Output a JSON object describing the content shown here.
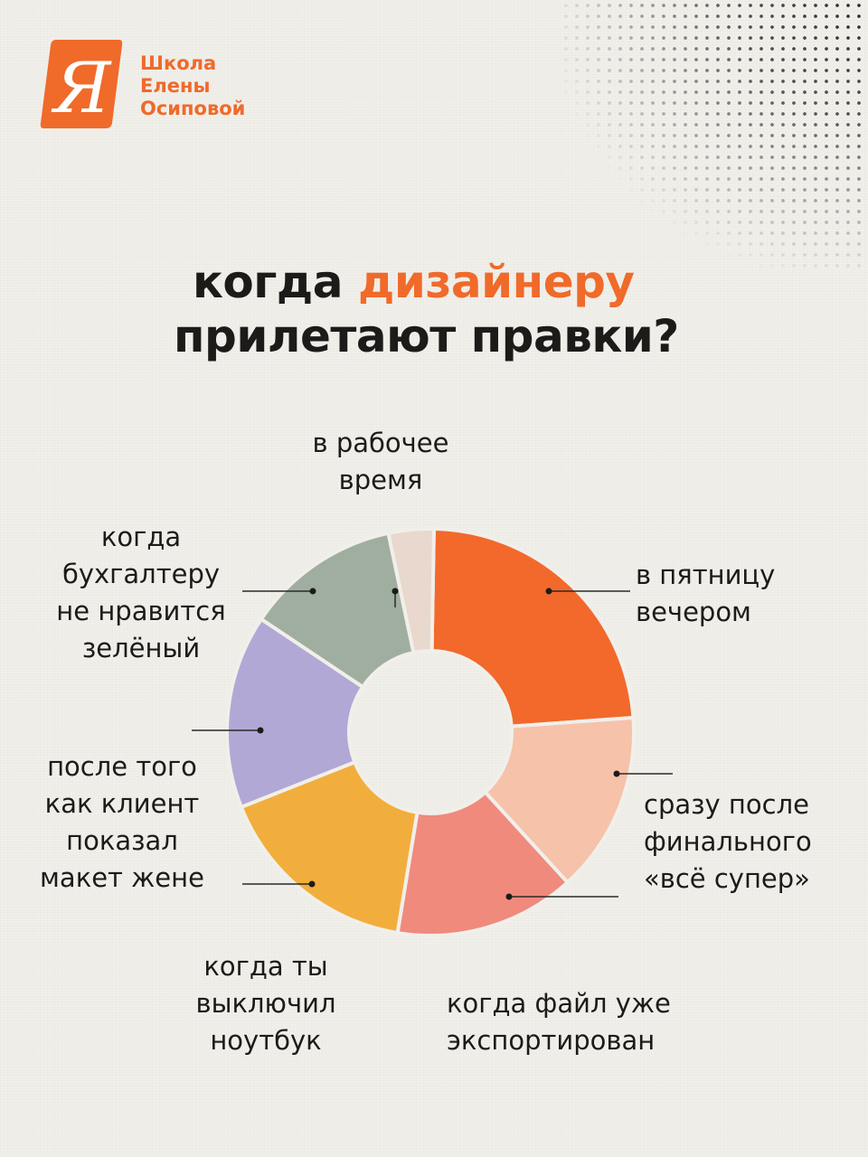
{
  "brand": {
    "logo_letter": "Я",
    "name_lines": [
      "Школа",
      "Елены",
      "Осиповой"
    ],
    "colors": {
      "orange": "#f06a2a"
    }
  },
  "title": {
    "line1_prefix": "когда ",
    "line1_accent": "дизайнеру",
    "line2": "прилетают правки?"
  },
  "chart_data": {
    "type": "pie",
    "donut": true,
    "title": "когда дизайнеру прилетают правки?",
    "slices": [
      {
        "label_lines": [
          "в пятницу",
          "вечером"
        ],
        "value": 23,
        "color": "#f2692b"
      },
      {
        "label_lines": [
          "сразу после",
          "финального",
          "«всё супер»"
        ],
        "value": 14,
        "color": "#f6c2a9"
      },
      {
        "label_lines": [
          "когда файл уже",
          "экспортирован"
        ],
        "value": 14,
        "color": "#f08a7d"
      },
      {
        "label_lines": [
          "когда ты",
          "выключил",
          "ноутбук"
        ],
        "value": 16,
        "color": "#f2ae3d"
      },
      {
        "label_lines": [
          "после того",
          "как клиент",
          "показал",
          "макет жене"
        ],
        "value": 15,
        "color": "#b2a8d6"
      },
      {
        "label_lines": [
          "когда",
          "бухгалтеру",
          "не нравится",
          "зелёный"
        ],
        "value": 12,
        "color": "#a0ae9f"
      },
      {
        "label_lines": [
          "в рабочее",
          "время"
        ],
        "value": 3.5,
        "color": "#e8d8ce"
      }
    ],
    "start_angle_deg": 1,
    "legend": "callout labels around chart"
  }
}
